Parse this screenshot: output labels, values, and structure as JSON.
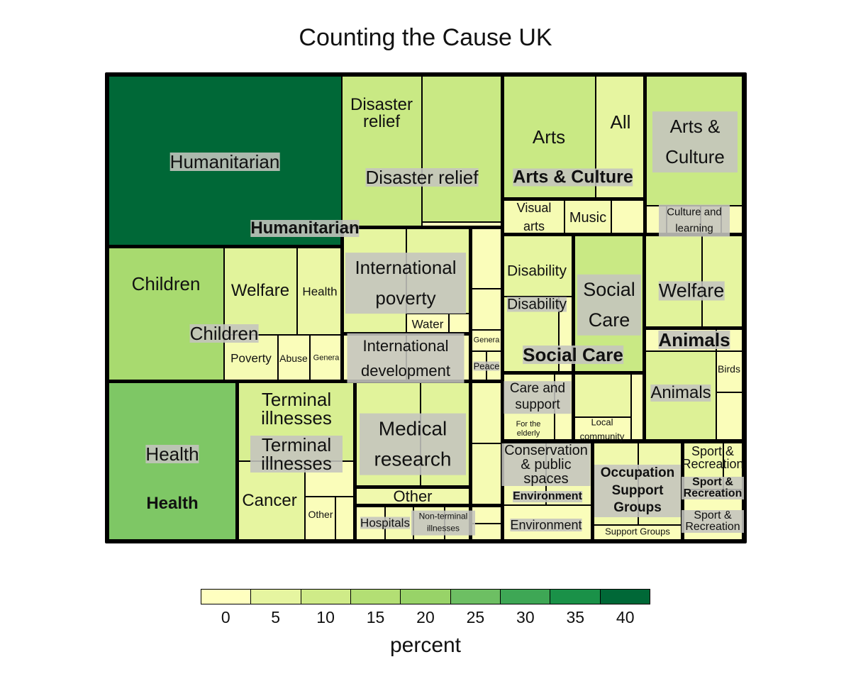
{
  "chart_data": {
    "type": "treemap",
    "title": "Counting the Cause UK",
    "legend": {
      "title": "percent",
      "ticks": [
        "0",
        "5",
        "10",
        "15",
        "20",
        "25",
        "30",
        "35",
        "40"
      ],
      "colors": [
        "#ffffc0",
        "#e6f5a0",
        "#cfeb88",
        "#b3df74",
        "#98d368",
        "#6dbf63",
        "#3ea755",
        "#1a9148",
        "#006837"
      ]
    },
    "groups": [
      {
        "name": "Humanitarian",
        "children": [
          {
            "name": "Humanitarian",
            "percent": 40
          },
          {
            "name": "Disaster relief",
            "percent": 11
          }
        ]
      },
      {
        "name": "International",
        "children": [
          {
            "name": "International poverty",
            "percent": 5
          },
          {
            "name": "Water",
            "percent": 1
          },
          {
            "name": "International development",
            "percent": 1
          },
          {
            "name": "General",
            "percent": 1
          },
          {
            "name": "Peace",
            "percent": 1
          }
        ]
      },
      {
        "name": "Children",
        "children": [
          {
            "name": "Children",
            "percent": 17
          },
          {
            "name": "Welfare",
            "percent": 6
          },
          {
            "name": "Health",
            "percent": 4
          },
          {
            "name": "Poverty",
            "percent": 2
          },
          {
            "name": "Abuse",
            "percent": 1
          },
          {
            "name": "General",
            "percent": 1
          }
        ]
      },
      {
        "name": "Health",
        "children": [
          {
            "name": "Health",
            "percent": 23
          },
          {
            "name": "Terminal illnesses",
            "percent": 8
          },
          {
            "name": "Cancer",
            "percent": 5
          },
          {
            "name": "Other",
            "percent": 1
          },
          {
            "name": "Medical research",
            "percent": 6
          },
          {
            "name": "Hospitals",
            "percent": 1
          },
          {
            "name": "Non-terminal illnesses",
            "percent": 2
          }
        ]
      },
      {
        "name": "Arts & Culture",
        "children": [
          {
            "name": "Arts",
            "percent": 11
          },
          {
            "name": "All",
            "percent": 5
          },
          {
            "name": "Arts & Culture",
            "percent": 11
          },
          {
            "name": "Visual arts",
            "percent": 2
          },
          {
            "name": "Music",
            "percent": 2
          },
          {
            "name": "Culture and learning",
            "percent": 1
          }
        ]
      },
      {
        "name": "Social Care",
        "children": [
          {
            "name": "Disability",
            "percent": 5
          },
          {
            "name": "Social Care",
            "percent": 11
          },
          {
            "name": "Care and support",
            "percent": 2
          },
          {
            "name": "For the elderly",
            "percent": 1
          },
          {
            "name": "Local community",
            "percent": 1
          }
        ]
      },
      {
        "name": "Animals",
        "children": [
          {
            "name": "Welfare",
            "percent": 6
          },
          {
            "name": "Animals",
            "percent": 7
          },
          {
            "name": "Birds",
            "percent": 1
          }
        ]
      },
      {
        "name": "Environment",
        "children": [
          {
            "name": "Conservation & public spaces",
            "percent": 2
          },
          {
            "name": "Environment",
            "percent": 1
          }
        ]
      },
      {
        "name": "Occupation Support Groups",
        "children": [
          {
            "name": "Support Groups",
            "percent": 3
          }
        ]
      },
      {
        "name": "Sport & Recreation",
        "children": [
          {
            "name": "Sport & Recreation",
            "percent": 3
          }
        ]
      }
    ],
    "labels": [
      "Humanitarian",
      "Disaster relief",
      "Disaster relief",
      "Humanitarian",
      "International poverty",
      "Water",
      "Genera",
      "International development",
      "Peace",
      "Children",
      "Children",
      "Welfare",
      "Health",
      "Poverty",
      "Abuse",
      "Genera",
      "Health",
      "Terminal illnesses",
      "Terminal illnesses",
      "Health",
      "Cancer",
      "Other",
      "Medical research",
      "Other",
      "Hospitals",
      "Non-terminal illnesses",
      "Arts",
      "All",
      "Arts & Culture",
      "Arts & Culture",
      "Visual arts",
      "Music",
      "Culture and learning",
      "Disability",
      "Disability",
      "Social Care",
      "Social Care",
      "Welfare",
      "Animals",
      "Animals",
      "Birds",
      "For the elderly",
      "Care and support",
      "Local community",
      "Conservation & public spaces",
      "Environment",
      "Environment",
      "Sport & Recreation",
      "Occupation Support Groups",
      "Support Groups",
      "Sport & Recreation",
      "Sport & Recreation"
    ]
  }
}
